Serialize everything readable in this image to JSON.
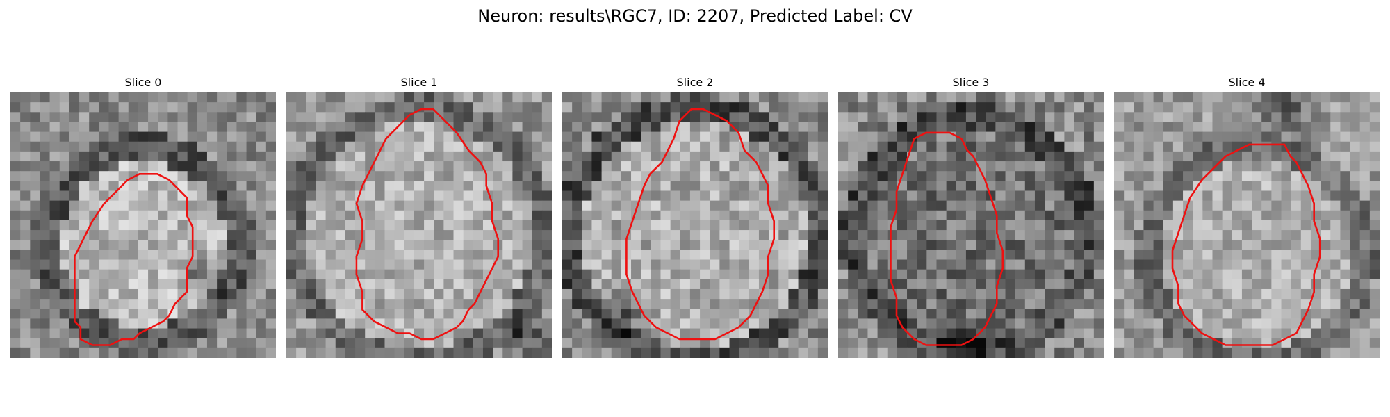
{
  "figure": {
    "title": "Neuron: results\\RGC7, ID: 2207, Predicted Label: CV"
  },
  "contour_color": "#ee1111",
  "slices": [
    {
      "title": "Slice 0",
      "contour": [
        [
          11,
          10
        ],
        [
          14,
          10
        ],
        [
          16,
          11
        ],
        [
          17,
          12
        ],
        [
          19,
          14
        ],
        [
          19,
          17
        ],
        [
          20,
          19
        ],
        [
          20,
          24
        ],
        [
          19,
          26
        ],
        [
          19,
          30
        ],
        [
          17,
          32
        ],
        [
          16,
          34
        ],
        [
          15,
          35
        ],
        [
          13,
          36
        ],
        [
          11,
          37
        ],
        [
          10,
          38
        ],
        [
          8,
          38
        ],
        [
          6,
          39
        ],
        [
          3,
          39
        ],
        [
          1,
          38
        ],
        [
          1,
          36
        ],
        [
          0,
          35
        ],
        [
          0,
          24
        ],
        [
          1,
          22
        ],
        [
          2,
          20
        ],
        [
          3,
          18
        ],
        [
          5,
          15
        ],
        [
          7,
          13
        ],
        [
          9,
          11
        ]
      ],
      "closed": true
    },
    {
      "title": "Slice 1",
      "contour": [
        [
          8,
          2
        ],
        [
          10,
          1
        ],
        [
          12,
          1
        ],
        [
          14,
          3
        ],
        [
          16,
          5
        ],
        [
          18,
          8
        ],
        [
          20,
          10
        ],
        [
          21,
          12
        ],
        [
          21,
          14
        ],
        [
          22,
          17
        ],
        [
          22,
          20
        ],
        [
          23,
          23
        ],
        [
          23,
          26
        ],
        [
          22,
          28
        ],
        [
          21,
          30
        ],
        [
          20,
          32
        ],
        [
          19,
          34
        ],
        [
          18,
          35
        ],
        [
          17,
          37
        ],
        [
          16,
          38
        ],
        [
          14,
          39
        ],
        [
          12,
          40
        ],
        [
          10,
          40
        ],
        [
          8,
          39
        ],
        [
          6,
          39
        ],
        [
          4,
          38
        ],
        [
          2,
          37
        ],
        [
          0,
          35
        ],
        [
          0,
          32
        ],
        [
          -1,
          29
        ],
        [
          -1,
          26
        ],
        [
          0,
          23
        ],
        [
          0,
          20
        ],
        [
          -1,
          17
        ],
        [
          0,
          14
        ],
        [
          1,
          12
        ],
        [
          2,
          10
        ],
        [
          3,
          8
        ],
        [
          4,
          6
        ],
        [
          6,
          4
        ]
      ],
      "closed": true
    },
    {
      "title": "Slice 2",
      "contour": [
        [
          10,
          1
        ],
        [
          12,
          1
        ],
        [
          14,
          2
        ],
        [
          16,
          3
        ],
        [
          18,
          5
        ],
        [
          19,
          8
        ],
        [
          21,
          10
        ],
        [
          22,
          12
        ],
        [
          23,
          14
        ],
        [
          23,
          17
        ],
        [
          24,
          20
        ],
        [
          24,
          23
        ],
        [
          23,
          26
        ],
        [
          23,
          29
        ],
        [
          22,
          32
        ],
        [
          21,
          34
        ],
        [
          20,
          36
        ],
        [
          18,
          38
        ],
        [
          16,
          39
        ],
        [
          14,
          40
        ],
        [
          12,
          40
        ],
        [
          10,
          40
        ],
        [
          8,
          40
        ],
        [
          6,
          39
        ],
        [
          4,
          38
        ],
        [
          2,
          36
        ],
        [
          1,
          34
        ],
        [
          0,
          32
        ],
        [
          -1,
          29
        ],
        [
          -1,
          26
        ],
        [
          -1,
          23
        ],
        [
          0,
          20
        ],
        [
          1,
          17
        ],
        [
          2,
          14
        ],
        [
          3,
          12
        ],
        [
          5,
          10
        ],
        [
          6,
          8
        ],
        [
          7,
          6
        ],
        [
          8,
          3
        ]
      ],
      "closed": true
    },
    {
      "title": "Slice 3",
      "contour": [
        [
          2,
          5
        ],
        [
          4,
          4
        ],
        [
          6,
          4
        ],
        [
          8,
          4
        ],
        [
          10,
          5
        ],
        [
          11,
          7
        ],
        [
          12,
          8
        ],
        [
          13,
          10
        ],
        [
          14,
          12
        ],
        [
          15,
          15
        ],
        [
          16,
          18
        ],
        [
          16,
          21
        ],
        [
          17,
          24
        ],
        [
          17,
          27
        ],
        [
          16,
          30
        ],
        [
          16,
          33
        ],
        [
          15,
          35
        ],
        [
          14,
          37
        ],
        [
          13,
          38
        ],
        [
          12,
          39
        ],
        [
          10,
          40
        ],
        [
          8,
          40
        ],
        [
          6,
          40
        ],
        [
          4,
          40
        ],
        [
          2,
          39
        ],
        [
          1,
          38
        ],
        [
          0,
          37
        ],
        [
          -1,
          35
        ],
        [
          -1,
          32
        ],
        [
          -2,
          29
        ],
        [
          -2,
          26
        ],
        [
          -2,
          23
        ],
        [
          -2,
          20
        ],
        [
          -1,
          17
        ],
        [
          -1,
          14
        ],
        [
          0,
          11
        ],
        [
          1,
          8
        ]
      ],
      "closed": true
    },
    {
      "title": "Slice 4",
      "contour": [
        [
          12,
          6
        ],
        [
          14,
          6
        ],
        [
          16,
          6
        ],
        [
          18,
          6
        ],
        [
          19,
          8
        ],
        [
          20,
          9
        ],
        [
          21,
          11
        ],
        [
          22,
          13
        ],
        [
          23,
          16
        ],
        [
          23,
          19
        ],
        [
          24,
          22
        ],
        [
          24,
          25
        ],
        [
          23,
          28
        ],
        [
          23,
          31
        ],
        [
          22,
          34
        ],
        [
          21,
          36
        ],
        [
          20,
          38
        ],
        [
          18,
          39
        ],
        [
          16,
          40
        ],
        [
          14,
          40
        ],
        [
          12,
          40
        ],
        [
          10,
          40
        ],
        [
          8,
          40
        ],
        [
          6,
          39
        ],
        [
          4,
          38
        ],
        [
          3,
          37
        ],
        [
          1,
          35
        ],
        [
          0,
          33
        ],
        [
          0,
          30
        ],
        [
          -1,
          27
        ],
        [
          -1,
          24
        ],
        [
          0,
          21
        ],
        [
          1,
          18
        ],
        [
          2,
          15
        ],
        [
          4,
          12
        ],
        [
          6,
          10
        ],
        [
          8,
          8
        ],
        [
          10,
          7
        ]
      ],
      "closed": true
    }
  ]
}
